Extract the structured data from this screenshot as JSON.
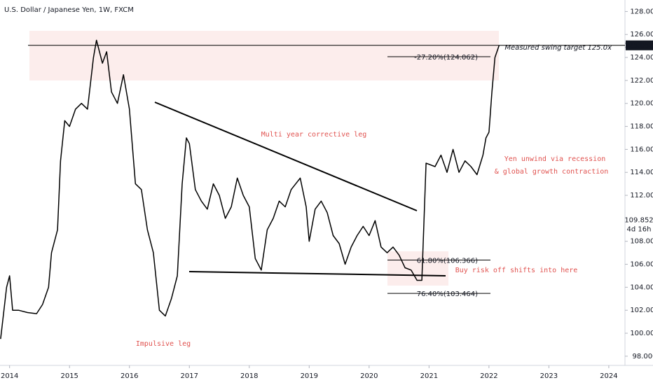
{
  "chart_data": {
    "type": "line",
    "title": "U.S. Dollar / Japanese Yen, 1W, FXCM",
    "color": "#000000",
    "x": [
      2013.85,
      2013.95,
      2014.0,
      2014.05,
      2014.15,
      2014.3,
      2014.45,
      2014.55,
      2014.65,
      2014.7,
      2014.8,
      2014.85,
      2014.92,
      2015.0,
      2015.1,
      2015.2,
      2015.3,
      2015.4,
      2015.45,
      2015.55,
      2015.62,
      2015.7,
      2015.8,
      2015.9,
      2016.0,
      2016.1,
      2016.2,
      2016.3,
      2016.4,
      2016.5,
      2016.6,
      2016.7,
      2016.8,
      2016.88,
      2016.95,
      2017.0,
      2017.1,
      2017.2,
      2017.3,
      2017.4,
      2017.5,
      2017.6,
      2017.7,
      2017.8,
      2017.9,
      2018.0,
      2018.1,
      2018.2,
      2018.3,
      2018.4,
      2018.5,
      2018.6,
      2018.7,
      2018.85,
      2018.95,
      2019.0,
      2019.1,
      2019.2,
      2019.3,
      2019.4,
      2019.5,
      2019.6,
      2019.7,
      2019.8,
      2019.9,
      2020.0,
      2020.1,
      2020.2,
      2020.3,
      2020.4,
      2020.5,
      2020.6,
      2020.7,
      2020.8,
      2020.88,
      2020.95,
      2021.1,
      2021.2,
      2021.3,
      2021.4,
      2021.5,
      2021.6,
      2021.7,
      2021.8,
      2021.9,
      2021.95,
      2022.0,
      2022.05,
      2022.1,
      2022.17
    ],
    "values": [
      99.5,
      104,
      105,
      102,
      102,
      101.8,
      101.7,
      102.5,
      104,
      107,
      109,
      115,
      118.5,
      118,
      119.5,
      120,
      119.5,
      124,
      125.5,
      123.5,
      124.5,
      121,
      120,
      122.5,
      119.5,
      113,
      112.5,
      109,
      107,
      102,
      101.5,
      103,
      105,
      113,
      117,
      116.5,
      112.5,
      111.5,
      110.8,
      113,
      112,
      110,
      111,
      113.5,
      112,
      111,
      106.5,
      105.5,
      109,
      110,
      111.5,
      111,
      112.5,
      113.5,
      111,
      108,
      110.8,
      111.5,
      110.5,
      108.5,
      107.8,
      106,
      107.5,
      108.5,
      109.3,
      108.5,
      109.8,
      107.5,
      107,
      107.5,
      106.8,
      105.7,
      105.5,
      104.6,
      104.6,
      114.8,
      114.5,
      115.5,
      114,
      116,
      114,
      115,
      114.5,
      113.8,
      115.5,
      117,
      117.5,
      121,
      124,
      125.052
    ],
    "xlim": [
      2013.84,
      2024.27
    ],
    "xticks": [
      2014,
      2015,
      2016,
      2017,
      2018,
      2019,
      2020,
      2021,
      2022,
      2023,
      2024
    ],
    "ylim": [
      97.2,
      129.0
    ],
    "yticks": [
      {
        "value": 98,
        "label": "98.000"
      },
      {
        "value": 100,
        "label": "100.000"
      },
      {
        "value": 102,
        "label": "102.000"
      },
      {
        "value": 104,
        "label": "104.000"
      },
      {
        "value": 106,
        "label": "106.000"
      },
      {
        "value": 108,
        "label": "108.000"
      },
      {
        "value": 112,
        "label": "112.000"
      },
      {
        "value": 114,
        "label": "114.000"
      },
      {
        "value": 116,
        "label": "116.000"
      },
      {
        "value": 118,
        "label": "118.000"
      },
      {
        "value": 120,
        "label": "120.000"
      },
      {
        "value": 122,
        "label": "122.000"
      },
      {
        "value": 124,
        "label": "124.000"
      },
      {
        "value": 126,
        "label": "126.000"
      },
      {
        "value": 128,
        "label": "128.000"
      }
    ],
    "target_price": 125.052,
    "current_price": 109.852,
    "countdown": "4d 16h",
    "levels": [
      {
        "label": "-27.20%(124.062)",
        "value": 124.062
      },
      {
        "label": "61.80%(106.366)",
        "value": 106.366
      },
      {
        "label": "76.40%(103.464)",
        "value": 103.464
      }
    ],
    "annotations": [
      "Measured swing target 125.0x",
      "Multi year corrective leg",
      "Yen unwind via recession",
      "& global growth contraction",
      "Buy risk off shifts into here",
      "Impulsive leg"
    ]
  }
}
